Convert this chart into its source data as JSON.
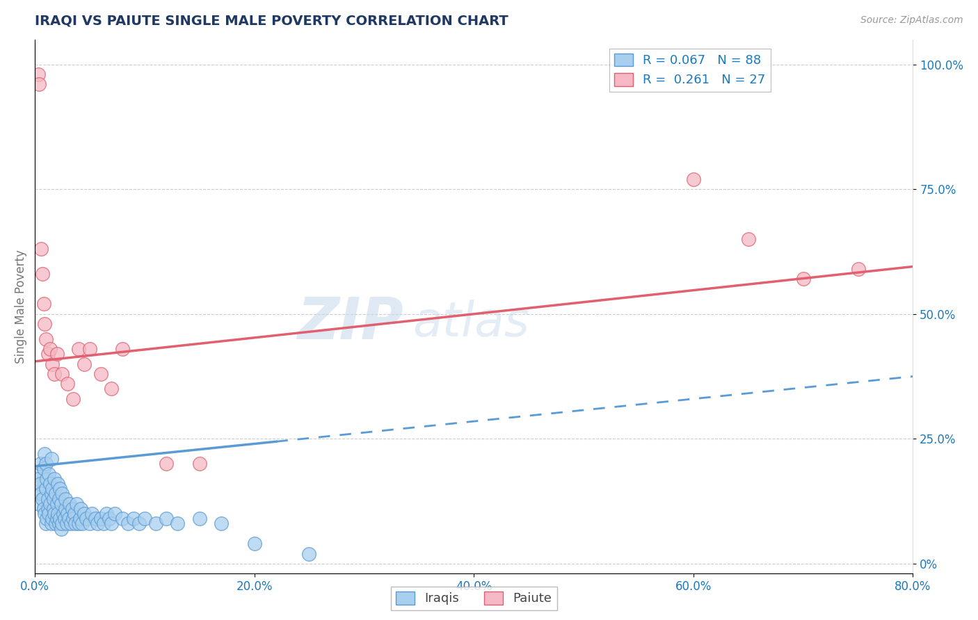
{
  "title": "IRAQI VS PAIUTE SINGLE MALE POVERTY CORRELATION CHART",
  "source": "Source: ZipAtlas.com",
  "ylabel": "Single Male Poverty",
  "xlim": [
    0.0,
    0.8
  ],
  "ylim": [
    -0.02,
    1.05
  ],
  "xticks": [
    0.0,
    0.2,
    0.4,
    0.6,
    0.8
  ],
  "xticklabels": [
    "0.0%",
    "20.0%",
    "40.0%",
    "60.0%",
    "80.0%"
  ],
  "yticks_right": [
    0.0,
    0.25,
    0.5,
    0.75,
    1.0
  ],
  "yticklabels_right": [
    "0%",
    "25.0%",
    "50.0%",
    "75.0%",
    "100.0%"
  ],
  "iraqi_R": "0.067",
  "iraqi_N": "88",
  "paiute_R": "0.261",
  "paiute_N": "27",
  "iraqi_color": "#A8CFEE",
  "paiute_color": "#F5B8C4",
  "iraqi_edge": "#5B9BD5",
  "paiute_edge": "#E06070",
  "watermark": "ZIPatlas",
  "iraqi_scatter_x": [
    0.001,
    0.002,
    0.003,
    0.004,
    0.005,
    0.005,
    0.006,
    0.007,
    0.008,
    0.008,
    0.009,
    0.009,
    0.01,
    0.01,
    0.01,
    0.011,
    0.011,
    0.012,
    0.012,
    0.013,
    0.013,
    0.014,
    0.014,
    0.015,
    0.015,
    0.015,
    0.016,
    0.016,
    0.017,
    0.017,
    0.018,
    0.018,
    0.019,
    0.019,
    0.02,
    0.02,
    0.021,
    0.021,
    0.022,
    0.022,
    0.023,
    0.023,
    0.024,
    0.024,
    0.025,
    0.025,
    0.026,
    0.027,
    0.028,
    0.028,
    0.029,
    0.03,
    0.031,
    0.032,
    0.033,
    0.034,
    0.035,
    0.036,
    0.037,
    0.038,
    0.04,
    0.041,
    0.042,
    0.043,
    0.045,
    0.047,
    0.05,
    0.052,
    0.055,
    0.057,
    0.06,
    0.063,
    0.065,
    0.068,
    0.07,
    0.073,
    0.08,
    0.085,
    0.09,
    0.095,
    0.1,
    0.11,
    0.12,
    0.13,
    0.15,
    0.17,
    0.2,
    0.25
  ],
  "iraqi_scatter_y": [
    0.18,
    0.15,
    0.17,
    0.12,
    0.2,
    0.16,
    0.14,
    0.13,
    0.11,
    0.19,
    0.1,
    0.22,
    0.08,
    0.15,
    0.2,
    0.09,
    0.17,
    0.11,
    0.13,
    0.1,
    0.18,
    0.12,
    0.16,
    0.08,
    0.14,
    0.21,
    0.09,
    0.15,
    0.11,
    0.13,
    0.1,
    0.17,
    0.08,
    0.14,
    0.09,
    0.12,
    0.1,
    0.16,
    0.08,
    0.13,
    0.09,
    0.15,
    0.07,
    0.12,
    0.08,
    0.14,
    0.1,
    0.09,
    0.11,
    0.13,
    0.08,
    0.1,
    0.09,
    0.12,
    0.08,
    0.11,
    0.09,
    0.1,
    0.08,
    0.12,
    0.08,
    0.09,
    0.11,
    0.08,
    0.1,
    0.09,
    0.08,
    0.1,
    0.09,
    0.08,
    0.09,
    0.08,
    0.1,
    0.09,
    0.08,
    0.1,
    0.09,
    0.08,
    0.09,
    0.08,
    0.09,
    0.08,
    0.09,
    0.08,
    0.09,
    0.08,
    0.04,
    0.02
  ],
  "paiute_scatter_x": [
    0.003,
    0.004,
    0.006,
    0.007,
    0.008,
    0.009,
    0.01,
    0.012,
    0.014,
    0.016,
    0.018,
    0.02,
    0.025,
    0.03,
    0.035,
    0.04,
    0.045,
    0.05,
    0.06,
    0.07,
    0.08,
    0.12,
    0.15,
    0.6,
    0.65,
    0.7,
    0.75
  ],
  "paiute_scatter_y": [
    0.98,
    0.96,
    0.63,
    0.58,
    0.52,
    0.48,
    0.45,
    0.42,
    0.43,
    0.4,
    0.38,
    0.42,
    0.38,
    0.36,
    0.33,
    0.43,
    0.4,
    0.43,
    0.38,
    0.35,
    0.43,
    0.2,
    0.2,
    0.77,
    0.65,
    0.57,
    0.59
  ],
  "iraqi_line_x0": 0.0,
  "iraqi_line_x_solid_end": 0.22,
  "iraqi_line_x1": 0.8,
  "iraqi_line_y0": 0.195,
  "iraqi_line_y1": 0.375,
  "paiute_line_x0": 0.0,
  "paiute_line_x1": 0.8,
  "paiute_line_y0": 0.405,
  "paiute_line_y1": 0.595,
  "grid_color": "#CCCCCC",
  "title_color": "#1F3864",
  "axis_color": "#777777",
  "legend_text_color": "#1A7AC0",
  "background_color": "#FFFFFF"
}
